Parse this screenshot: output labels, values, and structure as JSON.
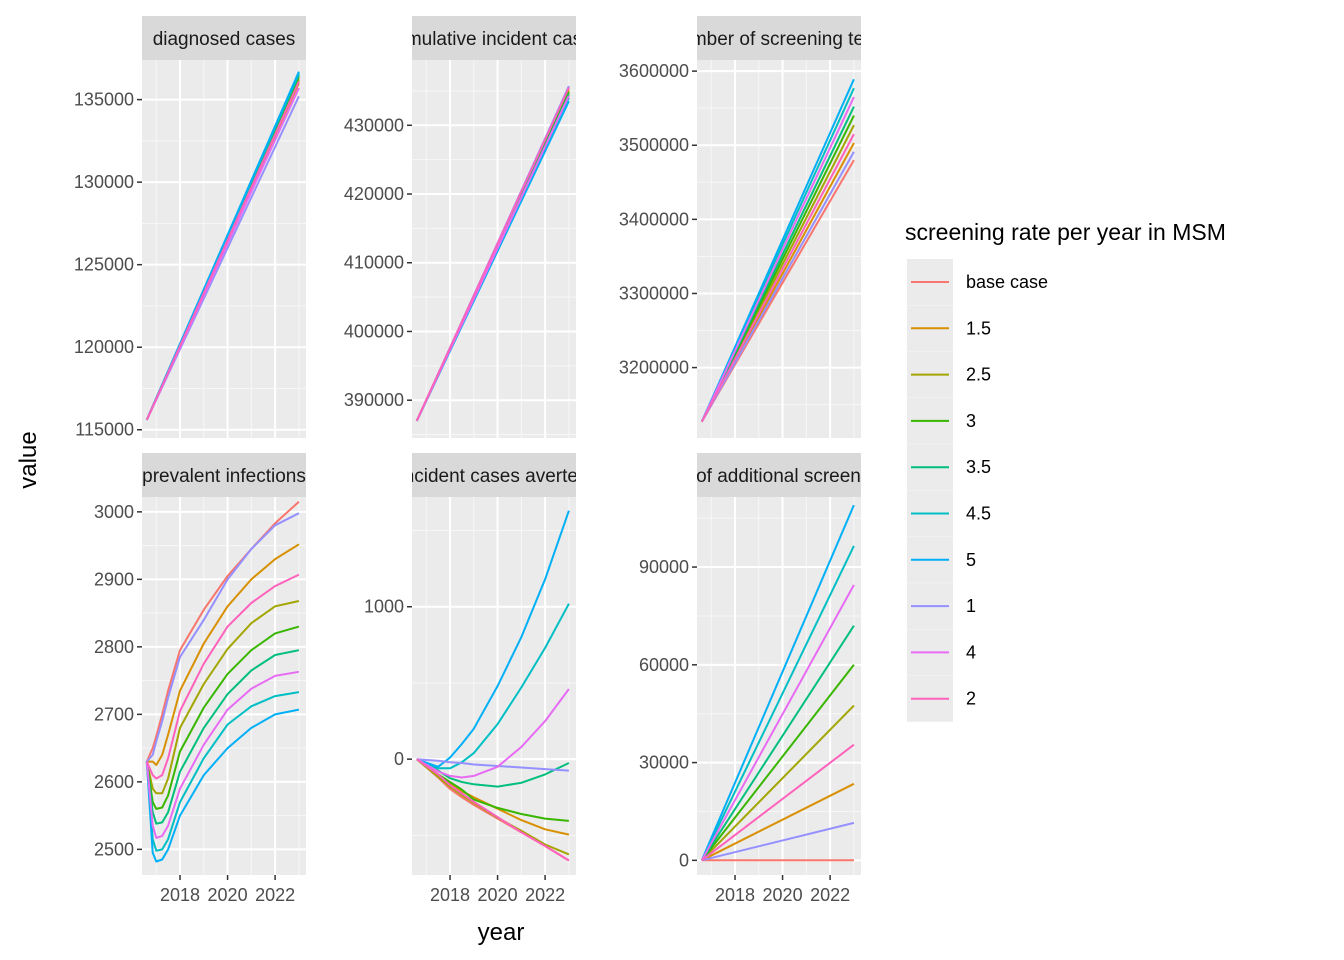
{
  "axes": {
    "xlabel": "year",
    "ylabel": "value"
  },
  "legend": {
    "title": "screening rate per year in MSM",
    "position": "right",
    "entries": [
      {
        "name": "base case",
        "color": "#F8766D"
      },
      {
        "name": "1.5",
        "color": "#D89000"
      },
      {
        "name": "2.5",
        "color": "#A3A500"
      },
      {
        "name": "3",
        "color": "#39B600"
      },
      {
        "name": "3.5",
        "color": "#00BF7D"
      },
      {
        "name": "4.5",
        "color": "#00BFC4"
      },
      {
        "name": "5",
        "color": "#00B0F6"
      },
      {
        "name": "1",
        "color": "#9590FF"
      },
      {
        "name": "4",
        "color": "#E76BF3"
      },
      {
        "name": "2",
        "color": "#FF62BC"
      }
    ]
  },
  "chart_data": {
    "type": "line",
    "grid": true,
    "facets": [
      {
        "strip": "diagnosed cases",
        "xlim": [
          2016.4,
          2023.3
        ],
        "x_ticks": [
          2018,
          2020,
          2022
        ],
        "ylim": [
          114500,
          137400
        ],
        "y_ticks": [
          115000,
          120000,
          125000,
          130000,
          135000
        ],
        "y_tick_labels": [
          "115000",
          "120000",
          "125000",
          "130000",
          "135000"
        ],
        "x": [
          2016.6,
          2023
        ],
        "series": [
          {
            "name": "base case",
            "values": [
              115600,
              136300
            ]
          },
          {
            "name": "1.5",
            "values": [
              115600,
              136000
            ]
          },
          {
            "name": "2.5",
            "values": [
              115600,
              136200
            ]
          },
          {
            "name": "3",
            "values": [
              115600,
              136400
            ]
          },
          {
            "name": "3.5",
            "values": [
              115600,
              136500
            ]
          },
          {
            "name": "4.5",
            "values": [
              115600,
              136600
            ]
          },
          {
            "name": "5",
            "values": [
              115600,
              136700
            ]
          },
          {
            "name": "1",
            "values": [
              115600,
              135200
            ]
          },
          {
            "name": "4",
            "values": [
              115600,
              135700
            ]
          },
          {
            "name": "2",
            "values": [
              115600,
              136100
            ]
          }
        ]
      },
      {
        "strip": "cumulative incident cases",
        "xlim": [
          2016.4,
          2023.3
        ],
        "x_ticks": [
          2018,
          2020,
          2022
        ],
        "ylim": [
          384500,
          439500
        ],
        "y_ticks": [
          390000,
          400000,
          410000,
          420000,
          430000
        ],
        "y_tick_labels": [
          "390000",
          "400000",
          "410000",
          "420000",
          "430000"
        ],
        "x": [
          2016.6,
          2023
        ],
        "series": [
          {
            "name": "base case",
            "values": [
              387000,
              435600
            ]
          },
          {
            "name": "1.5",
            "values": [
              387000,
              435300
            ]
          },
          {
            "name": "2.5",
            "values": [
              387000,
              435000
            ]
          },
          {
            "name": "3",
            "values": [
              387000,
              434800
            ]
          },
          {
            "name": "3.5",
            "values": [
              387000,
              434500
            ]
          },
          {
            "name": "4.5",
            "values": [
              387000,
              434000
            ]
          },
          {
            "name": "5",
            "values": [
              387000,
              433500
            ]
          },
          {
            "name": "1",
            "values": [
              387000,
              435700
            ]
          },
          {
            "name": "4",
            "values": [
              387000,
              434300
            ]
          },
          {
            "name": "2",
            "values": [
              387000,
              435500
            ]
          }
        ]
      },
      {
        "strip": "number of screening tests",
        "xlim": [
          2016.4,
          2023.3
        ],
        "x_ticks": [
          2018,
          2020,
          2022
        ],
        "ylim": [
          3105000,
          3615000
        ],
        "y_ticks": [
          3200000,
          3300000,
          3400000,
          3500000,
          3600000
        ],
        "y_tick_labels": [
          "3200000",
          "3300000",
          "3400000",
          "3500000",
          "3600000"
        ],
        "x": [
          2016.6,
          2023
        ],
        "series": [
          {
            "name": "base case",
            "values": [
              3127000,
              3480000
            ]
          },
          {
            "name": "1.5",
            "values": [
              3127000,
              3503000
            ]
          },
          {
            "name": "2.5",
            "values": [
              3127000,
              3527000
            ]
          },
          {
            "name": "3",
            "values": [
              3127000,
              3540000
            ]
          },
          {
            "name": "3.5",
            "values": [
              3127000,
              3552000
            ]
          },
          {
            "name": "4.5",
            "values": [
              3127000,
              3577000
            ]
          },
          {
            "name": "5",
            "values": [
              3127000,
              3589000
            ]
          },
          {
            "name": "1",
            "values": [
              3127000,
              3491000
            ]
          },
          {
            "name": "4",
            "values": [
              3127000,
              3565000
            ]
          },
          {
            "name": "2",
            "values": [
              3127000,
              3515000
            ]
          }
        ]
      },
      {
        "strip": "prevalent infections",
        "xlim": [
          2016.4,
          2023.3
        ],
        "x_ticks": [
          2018,
          2020,
          2022
        ],
        "ylim": [
          2462,
          3022
        ],
        "y_ticks": [
          2500,
          2600,
          2700,
          2800,
          2900,
          3000
        ],
        "y_tick_labels": [
          "2500",
          "2600",
          "2700",
          "2800",
          "2900",
          "3000"
        ],
        "x": [
          2016.6,
          2016.85,
          2017,
          2017.25,
          2017.5,
          2018,
          2019,
          2020,
          2021,
          2022,
          2023
        ],
        "series": [
          {
            "name": "base case",
            "values": [
              2630,
              2650,
              2668,
              2700,
              2735,
              2795,
              2855,
              2905,
              2945,
              2983,
              3015
            ]
          },
          {
            "name": "1.5",
            "values": [
              2630,
              2630,
              2625,
              2640,
              2670,
              2735,
              2805,
              2860,
              2900,
              2930,
              2952
            ]
          },
          {
            "name": "2.5",
            "values": [
              2630,
              2590,
              2583,
              2583,
              2605,
              2680,
              2745,
              2797,
              2835,
              2860,
              2868
            ]
          },
          {
            "name": "3",
            "values": [
              2630,
              2570,
              2560,
              2562,
              2580,
              2645,
              2710,
              2760,
              2795,
              2820,
              2830
            ]
          },
          {
            "name": "3.5",
            "values": [
              2630,
              2555,
              2538,
              2540,
              2555,
              2615,
              2680,
              2730,
              2765,
              2788,
              2795
            ]
          },
          {
            "name": "4.5",
            "values": [
              2630,
              2515,
              2498,
              2500,
              2515,
              2570,
              2635,
              2685,
              2712,
              2727,
              2733
            ]
          },
          {
            "name": "5",
            "values": [
              2630,
              2495,
              2482,
              2485,
              2500,
              2550,
              2610,
              2650,
              2680,
              2700,
              2707
            ]
          },
          {
            "name": "1",
            "values": [
              2630,
              2640,
              2660,
              2690,
              2725,
              2785,
              2840,
              2900,
              2945,
              2980,
              2998
            ]
          },
          {
            "name": "4",
            "values": [
              2630,
              2535,
              2517,
              2520,
              2535,
              2590,
              2655,
              2707,
              2738,
              2757,
              2763
            ]
          },
          {
            "name": "2",
            "values": [
              2630,
              2610,
              2605,
              2610,
              2635,
              2705,
              2775,
              2830,
              2865,
              2890,
              2907
            ]
          }
        ]
      },
      {
        "strip": "incident cases averted",
        "xlim": [
          2016.4,
          2023.3
        ],
        "x_ticks": [
          2018,
          2020,
          2022
        ],
        "ylim": [
          -760,
          1720
        ],
        "y_ticks": [
          0,
          1000
        ],
        "y_tick_labels": [
          "0",
          "1000"
        ],
        "x": [
          2016.6,
          2017.5,
          2018,
          2018.5,
          2019,
          2020,
          2021,
          2022,
          2023
        ],
        "series": [
          {
            "name": "base case",
            "values": [
              0,
              -120,
              -195,
              -250,
              -300,
              -390,
              -480,
              -570,
              -665
            ]
          },
          {
            "name": "1.5",
            "values": [
              0,
              -110,
              -160,
              -210,
              -250,
              -325,
              -400,
              -460,
              -495
            ]
          },
          {
            "name": "2.5",
            "values": [
              0,
              -115,
              -180,
              -235,
              -285,
              -385,
              -470,
              -560,
              -625
            ]
          },
          {
            "name": "3",
            "values": [
              0,
              -100,
              -150,
              -200,
              -265,
              -320,
              -360,
              -390,
              -405
            ]
          },
          {
            "name": "3.5",
            "values": [
              0,
              -75,
              -125,
              -150,
              -165,
              -180,
              -155,
              -100,
              -25
            ]
          },
          {
            "name": "4.5",
            "values": [
              0,
              -60,
              -60,
              -20,
              40,
              230,
              470,
              730,
              1020
            ]
          },
          {
            "name": "5",
            "values": [
              0,
              -50,
              10,
              100,
              200,
              480,
              800,
              1180,
              1630
            ]
          },
          {
            "name": "1",
            "values": [
              0,
              -10,
              -20,
              -25,
              -35,
              -45,
              -55,
              -65,
              -75
            ]
          },
          {
            "name": "4",
            "values": [
              0,
              -80,
              -110,
              -120,
              -110,
              -50,
              80,
              250,
              460
            ]
          },
          {
            "name": "2",
            "values": [
              0,
              -100,
              -170,
              -225,
              -280,
              -380,
              -480,
              -570,
              -665
            ]
          }
        ]
      },
      {
        "strip": "number of additional screening tests",
        "xlim": [
          2016.4,
          2023.3
        ],
        "x_ticks": [
          2018,
          2020,
          2022
        ],
        "ylim": [
          -4500,
          111500
        ],
        "y_ticks": [
          0,
          30000,
          60000,
          90000
        ],
        "y_tick_labels": [
          "0",
          "30000",
          "60000",
          "90000"
        ],
        "x": [
          2016.6,
          2023
        ],
        "series": [
          {
            "name": "base case",
            "values": [
              0,
              0
            ]
          },
          {
            "name": "1.5",
            "values": [
              0,
              23500
            ]
          },
          {
            "name": "2.5",
            "values": [
              0,
              47500
            ]
          },
          {
            "name": "3",
            "values": [
              0,
              60000
            ]
          },
          {
            "name": "3.5",
            "values": [
              0,
              72000
            ]
          },
          {
            "name": "4.5",
            "values": [
              0,
              96500
            ]
          },
          {
            "name": "5",
            "values": [
              0,
              109000
            ]
          },
          {
            "name": "1",
            "values": [
              0,
              11500
            ]
          },
          {
            "name": "4",
            "values": [
              0,
              84500
            ]
          },
          {
            "name": "2",
            "values": [
              0,
              35500
            ]
          }
        ]
      }
    ]
  }
}
